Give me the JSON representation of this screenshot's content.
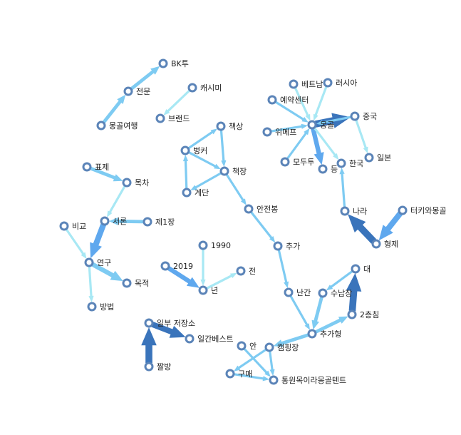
{
  "colors": {
    "light": "#a8e8f4",
    "medium": "#7ecbf2",
    "strong": "#5fa8ee",
    "dark": "#3a74bb",
    "node_stroke": "#5b84b8",
    "label": "#222222"
  },
  "nodes": [
    {
      "id": "bktu",
      "label": "BK투"
    },
    {
      "id": "jeonmun",
      "label": "전문"
    },
    {
      "id": "mongolyeohaeng",
      "label": "몽골여행"
    },
    {
      "id": "cashmere",
      "label": "캐시미"
    },
    {
      "id": "brand",
      "label": "브랜드"
    },
    {
      "id": "vietnam",
      "label": "베트남"
    },
    {
      "id": "russia",
      "label": "러시아"
    },
    {
      "id": "yeyak",
      "label": "예약센터"
    },
    {
      "id": "wimepeu",
      "label": "위메프"
    },
    {
      "id": "mongol",
      "label": "몽골"
    },
    {
      "id": "china",
      "label": "중국"
    },
    {
      "id": "japan",
      "label": "일본"
    },
    {
      "id": "modutu",
      "label": "모두투"
    },
    {
      "id": "deung",
      "label": "등"
    },
    {
      "id": "korea",
      "label": "한국"
    },
    {
      "id": "chaeksang",
      "label": "책상"
    },
    {
      "id": "bungker",
      "label": "벙커"
    },
    {
      "id": "chaekjang",
      "label": "책장"
    },
    {
      "id": "gyedan",
      "label": "계단"
    },
    {
      "id": "anjeonbong",
      "label": "안전봉"
    },
    {
      "id": "pyoje",
      "label": "표제"
    },
    {
      "id": "mokcha",
      "label": "목차"
    },
    {
      "id": "bigyo",
      "label": "비교"
    },
    {
      "id": "seoron",
      "label": "서론"
    },
    {
      "id": "je1jang",
      "label": "제1장"
    },
    {
      "id": "yeongu",
      "label": "연구"
    },
    {
      "id": "mokjeok",
      "label": "목적"
    },
    {
      "id": "bangbeop",
      "label": "방법"
    },
    {
      "id": "turkey",
      "label": "터키와몽골"
    },
    {
      "id": "nara",
      "label": "나라"
    },
    {
      "id": "hyeongje",
      "label": "형제"
    },
    {
      "id": "n1990",
      "label": "1990"
    },
    {
      "id": "n2019",
      "label": "2019"
    },
    {
      "id": "nyeon",
      "label": "년"
    },
    {
      "id": "jeon",
      "label": "전"
    },
    {
      "id": "chuga",
      "label": "추가"
    },
    {
      "id": "nangan",
      "label": "난간"
    },
    {
      "id": "sunapjang",
      "label": "수납장"
    },
    {
      "id": "dae",
      "label": "대"
    },
    {
      "id": "ichung",
      "label": "2층침"
    },
    {
      "id": "chugahyeong",
      "label": "추가형"
    },
    {
      "id": "ilbu",
      "label": "일부 저장소"
    },
    {
      "id": "ilgan",
      "label": "일간베스트"
    },
    {
      "id": "jjalbang",
      "label": "짤방"
    },
    {
      "id": "an",
      "label": "안"
    },
    {
      "id": "camping",
      "label": "캠핑장"
    },
    {
      "id": "gumae",
      "label": "구매"
    },
    {
      "id": "tongwon",
      "label": "통원목이라몽골텐트"
    }
  ],
  "edges": [
    {
      "source": "mongolyeohaeng",
      "target": "jeonmun",
      "strength": "medium",
      "weight": 3
    },
    {
      "source": "jeonmun",
      "target": "bktu",
      "strength": "medium",
      "weight": 3
    },
    {
      "source": "cashmere",
      "target": "brand",
      "strength": "light",
      "weight": 2
    },
    {
      "source": "vietnam",
      "target": "mongol",
      "strength": "light",
      "weight": 2
    },
    {
      "source": "russia",
      "target": "mongol",
      "strength": "light",
      "weight": 2
    },
    {
      "source": "yeyak",
      "target": "mongol",
      "strength": "medium",
      "weight": 2
    },
    {
      "source": "wimepeu",
      "target": "mongol",
      "strength": "medium",
      "weight": 2
    },
    {
      "source": "modutu",
      "target": "mongol",
      "strength": "medium",
      "weight": 2
    },
    {
      "source": "mongol",
      "target": "china",
      "strength": "dark",
      "weight": 6
    },
    {
      "source": "china",
      "target": "mongol",
      "strength": "medium",
      "weight": 2
    },
    {
      "source": "china",
      "target": "japan",
      "strength": "light",
      "weight": 2
    },
    {
      "source": "mongol",
      "target": "deung",
      "strength": "strong",
      "weight": 4
    },
    {
      "source": "mongol",
      "target": "korea",
      "strength": "light",
      "weight": 2
    },
    {
      "source": "gyedan",
      "target": "bungker",
      "strength": "medium",
      "weight": 2
    },
    {
      "source": "bungker",
      "target": "chaeksang",
      "strength": "medium",
      "weight": 2
    },
    {
      "source": "chaeksang",
      "target": "chaekjang",
      "strength": "medium",
      "weight": 2
    },
    {
      "source": "bungker",
      "target": "chaekjang",
      "strength": "medium",
      "weight": 2
    },
    {
      "source": "chaekjang",
      "target": "gyedan",
      "strength": "medium",
      "weight": 2
    },
    {
      "source": "chaekjang",
      "target": "anjeonbong",
      "strength": "medium",
      "weight": 2
    },
    {
      "source": "anjeonbong",
      "target": "chuga",
      "strength": "medium",
      "weight": 2
    },
    {
      "source": "chuga",
      "target": "nangan",
      "strength": "medium",
      "weight": 2
    },
    {
      "source": "nangan",
      "target": "chugahyeong",
      "strength": "medium",
      "weight": 2
    },
    {
      "source": "pyoje",
      "target": "mokcha",
      "strength": "medium",
      "weight": 3
    },
    {
      "source": "mokcha",
      "target": "seoron",
      "strength": "light",
      "weight": 2
    },
    {
      "source": "je1jang",
      "target": "seoron",
      "strength": "medium",
      "weight": 3
    },
    {
      "source": "seoron",
      "target": "yeongu",
      "strength": "strong",
      "weight": 5
    },
    {
      "source": "bigyo",
      "target": "yeongu",
      "strength": "light",
      "weight": 2
    },
    {
      "source": "yeongu",
      "target": "mokjeok",
      "strength": "medium",
      "weight": 4
    },
    {
      "source": "yeongu",
      "target": "bangbeop",
      "strength": "light",
      "weight": 2
    },
    {
      "source": "turkey",
      "target": "hyeongje",
      "strength": "strong",
      "weight": 5
    },
    {
      "source": "hyeongje",
      "target": "nara",
      "strength": "dark",
      "weight": 6
    },
    {
      "source": "nara",
      "target": "korea",
      "strength": "medium",
      "weight": 2
    },
    {
      "source": "n1990",
      "target": "nyeon",
      "strength": "light",
      "weight": 2
    },
    {
      "source": "n2019",
      "target": "nyeon",
      "strength": "strong",
      "weight": 4
    },
    {
      "source": "nyeon",
      "target": "jeon",
      "strength": "light",
      "weight": 2
    },
    {
      "source": "sunapjang",
      "target": "chugahyeong",
      "strength": "medium",
      "weight": 3
    },
    {
      "source": "dae",
      "target": "sunapjang",
      "strength": "medium",
      "weight": 2
    },
    {
      "source": "ichung",
      "target": "dae",
      "strength": "dark",
      "weight": 6
    },
    {
      "source": "chugahyeong",
      "target": "ichung",
      "strength": "medium",
      "weight": 3
    },
    {
      "source": "jjalbang",
      "target": "ilbu",
      "strength": "dark",
      "weight": 6
    },
    {
      "source": "ilbu",
      "target": "ilgan",
      "strength": "dark",
      "weight": 5
    },
    {
      "source": "chugahyeong",
      "target": "camping",
      "strength": "medium",
      "weight": 3
    },
    {
      "source": "camping",
      "target": "gumae",
      "strength": "medium",
      "weight": 2
    },
    {
      "source": "gumae",
      "target": "tongwon",
      "strength": "medium",
      "weight": 2
    },
    {
      "source": "camping",
      "target": "tongwon",
      "strength": "medium",
      "weight": 2
    },
    {
      "source": "an",
      "target": "tongwon",
      "strength": "medium",
      "weight": 2
    }
  ]
}
